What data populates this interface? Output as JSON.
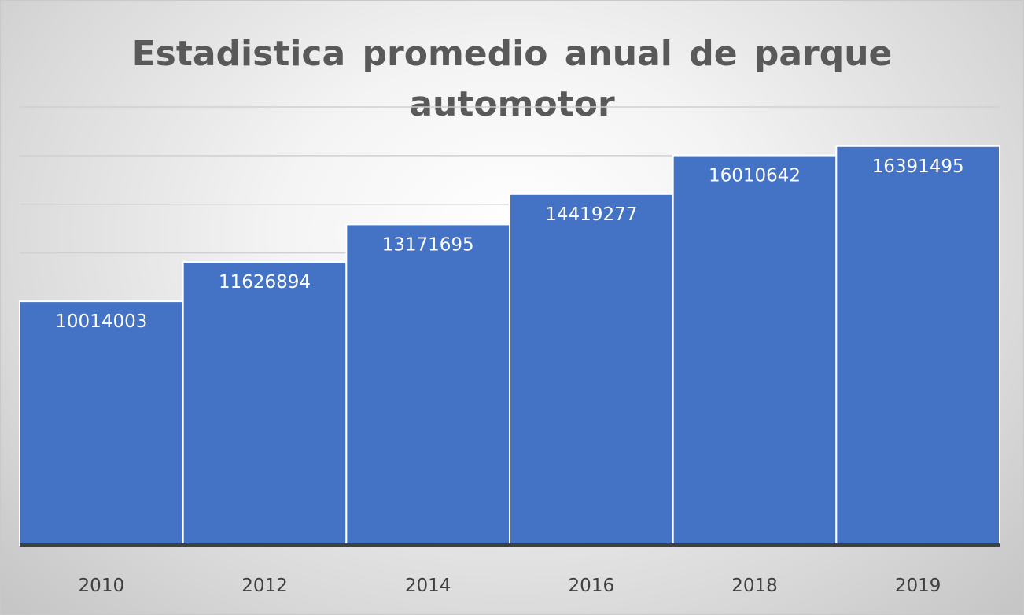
{
  "chart_data": {
    "type": "bar",
    "title": "Estadistica promedio anual de parque automotor",
    "categories": [
      "2010",
      "2012",
      "2014",
      "2016",
      "2018",
      "2019"
    ],
    "values": [
      10014003,
      11626894,
      13171695,
      14419277,
      16010642,
      16391495
    ],
    "data_labels": [
      "10014003",
      "11626894",
      "13171695",
      "14419277",
      "16010642",
      "16391495"
    ],
    "xlabel": "",
    "ylabel": "",
    "ylim": [
      0,
      18000000
    ],
    "y_gridline_step": 2000000,
    "grid": true,
    "legend": "none",
    "colors": {
      "bar": "#4472C4",
      "bar_edge": "#ffffff",
      "gridline": "#d0d0d0",
      "axis": "#404040",
      "title": "#595959"
    }
  }
}
